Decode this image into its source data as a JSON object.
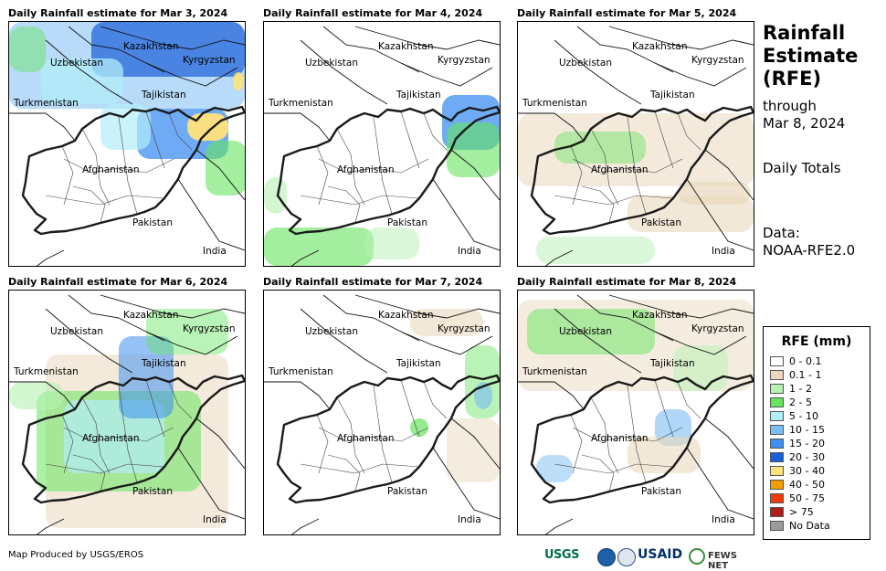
{
  "panels": [
    {
      "title": "Daily Rainfall estimate for Mar 3, 2024",
      "rain_extent": "heavy-north"
    },
    {
      "title": "Daily Rainfall estimate for Mar 4, 2024",
      "rain_extent": "northeast"
    },
    {
      "title": "Daily Rainfall estimate for Mar 5, 2024",
      "rain_extent": "light-scattered"
    },
    {
      "title": "Daily Rainfall estimate for Mar 6, 2024",
      "rain_extent": "widespread"
    },
    {
      "title": "Daily Rainfall estimate for Mar 7, 2024",
      "rain_extent": "sparse"
    },
    {
      "title": "Daily Rainfall estimate for Mar 8, 2024",
      "rain_extent": "moderate-north"
    }
  ],
  "map_labels": {
    "kazakhstan": "Kazakhstan",
    "kyrgyzstan": "Kyrgyzstan",
    "uzbekistan": "Uzbekistan",
    "tajikistan": "Tajikistan",
    "turkmenistan": "Turkmenistan",
    "afghanistan": "Afghanistan",
    "pakistan": "Pakistan",
    "india": "India"
  },
  "sidebar": {
    "title_line1": "Rainfall",
    "title_line2": "Estimate",
    "title_line3": "(RFE)",
    "through": "through",
    "date": "Mar 8, 2024",
    "totals": "Daily Totals",
    "data_label": "Data:",
    "data_source": "NOAA-RFE2.0"
  },
  "legend": {
    "title": "RFE (mm)",
    "items": [
      {
        "label": "0 - 0.1",
        "color": "#ffffff"
      },
      {
        "label": "0.1 - 1",
        "color": "#ead9bd"
      },
      {
        "label": "1 - 2",
        "color": "#b6f2b3"
      },
      {
        "label": "2 - 5",
        "color": "#66e45f"
      },
      {
        "label": "5 - 10",
        "color": "#b2ecf8"
      },
      {
        "label": "10 - 15",
        "color": "#7bbdf3"
      },
      {
        "label": "15 - 20",
        "color": "#3f8ff0"
      },
      {
        "label": "20 - 30",
        "color": "#1a5fd8"
      },
      {
        "label": "30 - 40",
        "color": "#ffe27a"
      },
      {
        "label": "40 - 50",
        "color": "#f59d00"
      },
      {
        "label": "50 - 75",
        "color": "#ef3a0c"
      },
      {
        "label": "> 75",
        "color": "#b01d1d"
      },
      {
        "label": "No Data",
        "color": "#9a9a9a"
      }
    ]
  },
  "footer": {
    "credit": "Map Produced by USGS/EROS",
    "logo_usgs": "USGS",
    "logo_usaid": "USAID",
    "logo_fews": "FEWS NET"
  }
}
